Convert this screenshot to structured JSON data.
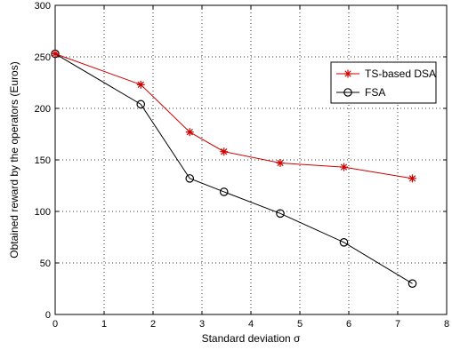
{
  "chart_data": {
    "type": "line",
    "title": "",
    "xlabel": "Standard deviation σ",
    "ylabel": "Obtained reward by the operators (Euros)",
    "xlim": [
      0,
      8
    ],
    "ylim": [
      0,
      300
    ],
    "xticks": [
      0,
      1,
      2,
      3,
      4,
      5,
      6,
      7,
      8
    ],
    "yticks": [
      0,
      50,
      100,
      150,
      200,
      250,
      300
    ],
    "grid": true,
    "legend_position": "top-right",
    "series": [
      {
        "name": "TS-based DSA",
        "color": "#cc0000",
        "marker": "star",
        "x": [
          0,
          1.75,
          2.75,
          3.45,
          4.6,
          5.9,
          7.3
        ],
        "y": [
          253,
          223,
          177,
          158,
          147,
          143,
          132
        ]
      },
      {
        "name": "FSA",
        "color": "#000000",
        "marker": "circle",
        "x": [
          0,
          1.75,
          2.75,
          3.45,
          4.6,
          5.9,
          7.3
        ],
        "y": [
          253,
          204,
          132,
          119,
          98,
          70,
          30
        ]
      }
    ]
  }
}
